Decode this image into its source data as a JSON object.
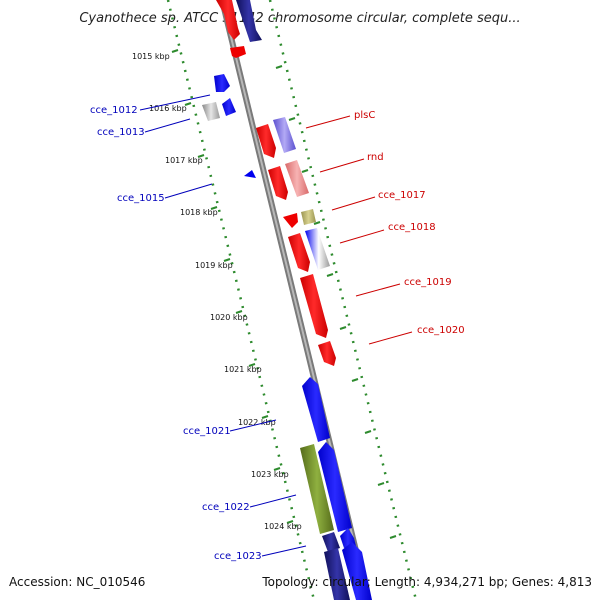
{
  "title": "Cyanothece sp. ATCC 51142 chromosome circular, complete sequ...",
  "footer": {
    "accession": "Accession: NC_010546",
    "summary": "Topology: circular; Length: 4,934,271 bp; Genes: 4,813"
  },
  "ruler_labels": [
    "1015 kbp",
    "1016 kbp",
    "1017 kbp",
    "1018 kbp",
    "1019 kbp",
    "1020 kbp",
    "1021 kbp",
    "1022 kbp",
    "1023 kbp",
    "1024 kbp"
  ],
  "genes": {
    "left": [
      "cce_1012",
      "cce_1013",
      "cce_1015",
      "cce_1021",
      "cce_1022",
      "cce_1023"
    ],
    "right": [
      "plsC",
      "rnd",
      "cce_1017",
      "cce_1018",
      "cce_1019",
      "cce_1020"
    ]
  },
  "colors": {
    "backbone": "#8c8c8c",
    "ruler_dots": "#2e8b2e",
    "forward_gene": "#0000ee",
    "reverse_gene": "#ee0000",
    "left_label": "#0000bb",
    "right_label": "#cc0000",
    "gray_gene": "#b8b8b8",
    "olive_gene": "#6b8e23",
    "khaki_gene": "#bdb76b",
    "purple_gene": "#7b68ee",
    "pink_gene": "#f08080",
    "navy_gene": "#1a1a80"
  }
}
